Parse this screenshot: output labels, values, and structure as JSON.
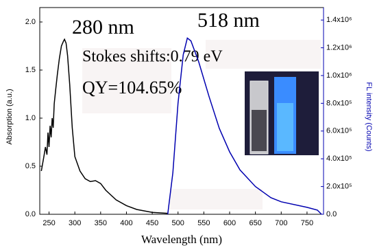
{
  "chart_data": {
    "type": "line",
    "x_label": "Wavelength (nm)",
    "y_label": "Absorption (a.u.)",
    "y2_label": "FL intensity (Counts)",
    "annotations": [
      "280 nm",
      "518 nm",
      "Stokes shifts:0.79 eV",
      "QY=104.65%"
    ],
    "xlim": [
      232,
      782
    ],
    "xticks": [
      250,
      300,
      350,
      400,
      450,
      500,
      550,
      600,
      650,
      700,
      750
    ],
    "ylim": [
      0,
      2.15
    ],
    "yticks": [
      0.0,
      0.5,
      1.0,
      1.5,
      2.0
    ],
    "y2lim": [
      0,
      1490000
    ],
    "y2ticks": [
      {
        "value": 0,
        "label": "0.0"
      },
      {
        "value": 200000,
        "label": "2.0x10⁵"
      },
      {
        "value": 400000,
        "label": "4.0x10⁵"
      },
      {
        "value": 600000,
        "label": "6.0x10⁵"
      },
      {
        "value": 800000,
        "label": "8.0x10⁵"
      },
      {
        "value": 1000000,
        "label": "1.0x10⁶"
      },
      {
        "value": 1200000,
        "label": "1.2x10⁶"
      },
      {
        "value": 1400000,
        "label": "1.4x10⁶"
      }
    ],
    "series": [
      {
        "color": "#000000",
        "x": [
          235,
          240,
          243,
          246,
          248,
          250,
          252,
          254,
          256,
          258,
          260,
          263,
          266,
          270,
          274,
          278,
          280,
          283,
          286,
          290,
          295,
          300,
          310,
          320,
          330,
          340,
          350,
          360,
          380,
          400,
          420,
          450,
          480
        ],
        "values": [
          0.45,
          0.6,
          0.7,
          0.62,
          0.85,
          0.7,
          0.92,
          0.8,
          1.0,
          0.9,
          1.15,
          1.3,
          1.45,
          1.62,
          1.75,
          1.8,
          1.82,
          1.78,
          1.65,
          1.35,
          0.9,
          0.6,
          0.45,
          0.37,
          0.34,
          0.35,
          0.32,
          0.25,
          0.15,
          0.09,
          0.05,
          0.02,
          0.01
        ]
      },
      {
        "color": "#0000b0",
        "axis": "y2",
        "x": [
          480,
          490,
          500,
          510,
          518,
          525,
          540,
          560,
          580,
          600,
          620,
          650,
          680,
          700,
          750,
          770,
          778
        ],
        "values": [
          0,
          300000,
          800000,
          1150000,
          1270000,
          1250000,
          1100000,
          850000,
          620000,
          450000,
          320000,
          200000,
          120000,
          90000,
          50000,
          30000,
          0
        ]
      }
    ]
  }
}
